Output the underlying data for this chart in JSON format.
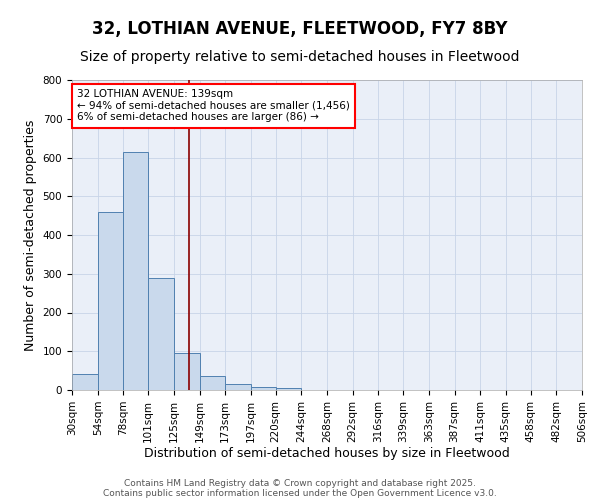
{
  "title": "32, LOTHIAN AVENUE, FLEETWOOD, FY7 8BY",
  "subtitle": "Size of property relative to semi-detached houses in Fleetwood",
  "xlabel": "Distribution of semi-detached houses by size in Fleetwood",
  "ylabel": "Number of semi-detached properties",
  "property_size": 139,
  "annotation_title": "32 LOTHIAN AVENUE: 139sqm",
  "annotation_line1": "← 94% of semi-detached houses are smaller (1,456)",
  "annotation_line2": "6% of semi-detached houses are larger (86) →",
  "bin_edges": [
    30,
    54,
    78,
    101,
    125,
    149,
    173,
    197,
    220,
    244,
    268,
    292,
    316,
    339,
    363,
    387,
    411,
    435,
    458,
    482,
    506
  ],
  "bin_counts": [
    42,
    460,
    615,
    290,
    95,
    35,
    15,
    8,
    5,
    0,
    0,
    0,
    0,
    0,
    0,
    0,
    0,
    0,
    0,
    0
  ],
  "bar_facecolor": "#c9d9ec",
  "bar_edgecolor": "#5080b0",
  "vline_color": "#8b0000",
  "vline_x": 139,
  "grid_color": "#c8d4e8",
  "background_color": "#eaeff8",
  "ylim": [
    0,
    800
  ],
  "yticks": [
    0,
    100,
    200,
    300,
    400,
    500,
    600,
    700,
    800
  ],
  "footer1": "Contains HM Land Registry data © Crown copyright and database right 2025.",
  "footer2": "Contains public sector information licensed under the Open Government Licence v3.0.",
  "title_fontsize": 12,
  "subtitle_fontsize": 10,
  "tick_label_fontsize": 7.5,
  "axis_label_fontsize": 9,
  "annotation_fontsize": 7.5,
  "footer_fontsize": 6.5
}
